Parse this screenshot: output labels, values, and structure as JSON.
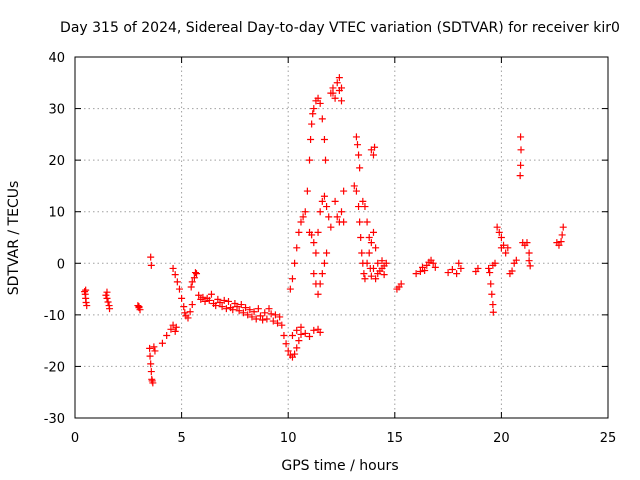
{
  "chart_data": {
    "type": "scatter",
    "title": "Day 315 of 2024, Sidereal Day-to-day VTEC variation (SDTVAR) for receiver kir0",
    "xlabel": "GPS time / hours",
    "ylabel": "SDTVAR / TECUs",
    "xlim": [
      0,
      25
    ],
    "ylim": [
      -30,
      40
    ],
    "xticks": [
      0,
      5,
      10,
      15,
      20,
      25
    ],
    "yticks": [
      -30,
      -20,
      -10,
      0,
      10,
      20,
      30,
      40
    ],
    "xtick_labels": [
      "0",
      "5",
      "10",
      "15",
      "20",
      "25"
    ],
    "ytick_labels": [
      "-30",
      "-20",
      "-10",
      "0",
      "10",
      "20",
      "30",
      "40"
    ],
    "grid": true,
    "marker": "+",
    "color": "#ff0000",
    "series": [
      {
        "name": "kir0",
        "points": [
          [
            0.45,
            -5.5
          ],
          [
            0.48,
            -6.0
          ],
          [
            0.5,
            -6.8
          ],
          [
            0.52,
            -7.6
          ],
          [
            0.55,
            -8.2
          ],
          [
            0.5,
            -5.2
          ],
          [
            1.45,
            -6.2
          ],
          [
            1.5,
            -6.8
          ],
          [
            1.55,
            -7.5
          ],
          [
            1.6,
            -8.2
          ],
          [
            1.62,
            -8.8
          ],
          [
            1.5,
            -5.6
          ],
          [
            2.95,
            -8.2
          ],
          [
            3.0,
            -8.6
          ],
          [
            3.05,
            -9.0
          ],
          [
            3.0,
            -8.4
          ],
          [
            3.5,
            -16.5
          ],
          [
            3.52,
            -18.0
          ],
          [
            3.55,
            -19.5
          ],
          [
            3.58,
            -21.0
          ],
          [
            3.6,
            -22.5
          ],
          [
            3.65,
            -23.2
          ],
          [
            3.62,
            -22.8
          ],
          [
            3.55,
            1.2
          ],
          [
            3.58,
            -0.4
          ],
          [
            3.7,
            -16.2
          ],
          [
            3.75,
            -17.0
          ],
          [
            4.1,
            -15.5
          ],
          [
            4.3,
            -14.0
          ],
          [
            4.5,
            -12.8
          ],
          [
            4.6,
            -12.0
          ],
          [
            4.7,
            -13.2
          ],
          [
            4.75,
            -12.4
          ],
          [
            4.6,
            -1.0
          ],
          [
            4.7,
            -2.2
          ],
          [
            4.8,
            -3.6
          ],
          [
            4.9,
            -5.0
          ],
          [
            5.0,
            -6.8
          ],
          [
            5.1,
            -8.4
          ],
          [
            5.15,
            -9.6
          ],
          [
            5.2,
            -10.2
          ],
          [
            5.3,
            -10.6
          ],
          [
            5.4,
            -9.4
          ],
          [
            5.5,
            -8.0
          ],
          [
            5.45,
            -4.6
          ],
          [
            5.5,
            -3.6
          ],
          [
            5.6,
            -2.8
          ],
          [
            5.7,
            -2.0
          ],
          [
            5.65,
            -1.8
          ],
          [
            5.8,
            -6.2
          ],
          [
            5.9,
            -7.0
          ],
          [
            6.0,
            -6.6
          ],
          [
            6.1,
            -7.4
          ],
          [
            6.2,
            -6.8
          ],
          [
            6.3,
            -7.2
          ],
          [
            6.4,
            -6.0
          ],
          [
            6.5,
            -7.8
          ],
          [
            6.6,
            -8.2
          ],
          [
            6.7,
            -7.0
          ],
          [
            6.8,
            -7.6
          ],
          [
            6.9,
            -8.4
          ],
          [
            7.0,
            -7.2
          ],
          [
            7.1,
            -8.8
          ],
          [
            7.2,
            -7.4
          ],
          [
            7.3,
            -8.6
          ],
          [
            7.4,
            -9.0
          ],
          [
            7.5,
            -7.8
          ],
          [
            7.6,
            -8.4
          ],
          [
            7.7,
            -9.2
          ],
          [
            7.8,
            -8.0
          ],
          [
            7.9,
            -9.6
          ],
          [
            8.0,
            -8.6
          ],
          [
            8.1,
            -10.0
          ],
          [
            8.2,
            -9.0
          ],
          [
            8.3,
            -10.4
          ],
          [
            8.4,
            -9.4
          ],
          [
            8.5,
            -10.8
          ],
          [
            8.6,
            -8.8
          ],
          [
            8.7,
            -10.2
          ],
          [
            8.8,
            -11.0
          ],
          [
            8.9,
            -9.6
          ],
          [
            9.0,
            -10.8
          ],
          [
            9.1,
            -8.8
          ],
          [
            9.2,
            -9.8
          ],
          [
            9.3,
            -11.2
          ],
          [
            9.4,
            -10.0
          ],
          [
            9.5,
            -11.6
          ],
          [
            9.6,
            -10.4
          ],
          [
            9.7,
            -12.0
          ],
          [
            9.8,
            -14.0
          ],
          [
            9.9,
            -15.6
          ],
          [
            10.0,
            -17.0
          ],
          [
            10.1,
            -17.8
          ],
          [
            10.2,
            -18.2
          ],
          [
            10.3,
            -17.6
          ],
          [
            10.4,
            -16.4
          ],
          [
            10.5,
            -15.0
          ],
          [
            10.6,
            -13.8
          ],
          [
            10.2,
            -14.0
          ],
          [
            10.4,
            -13.0
          ],
          [
            10.6,
            -12.4
          ],
          [
            10.8,
            -13.6
          ],
          [
            11.0,
            -14.2
          ],
          [
            11.2,
            -13.0
          ],
          [
            11.4,
            -12.8
          ],
          [
            11.5,
            -13.4
          ],
          [
            10.1,
            -5.0
          ],
          [
            10.2,
            -3.0
          ],
          [
            10.3,
            0.0
          ],
          [
            10.4,
            3.0
          ],
          [
            10.5,
            6.0
          ],
          [
            10.6,
            8.0
          ],
          [
            10.7,
            9.0
          ],
          [
            10.8,
            10.0
          ],
          [
            10.9,
            14.0
          ],
          [
            11.0,
            20.0
          ],
          [
            11.05,
            24.0
          ],
          [
            11.1,
            27.0
          ],
          [
            11.15,
            29.0
          ],
          [
            11.2,
            30.0
          ],
          [
            11.3,
            31.5
          ],
          [
            11.4,
            32.0
          ],
          [
            11.5,
            31.0
          ],
          [
            11.6,
            28.0
          ],
          [
            11.7,
            24.0
          ],
          [
            11.75,
            20.0
          ],
          [
            11.0,
            6.0
          ],
          [
            11.1,
            5.5
          ],
          [
            11.2,
            4.0
          ],
          [
            11.3,
            2.0
          ],
          [
            11.4,
            6.0
          ],
          [
            11.5,
            10.0
          ],
          [
            11.6,
            12.0
          ],
          [
            11.7,
            13.0
          ],
          [
            11.8,
            11.0
          ],
          [
            11.9,
            9.0
          ],
          [
            12.0,
            7.0
          ],
          [
            11.2,
            -2.0
          ],
          [
            11.3,
            -4.0
          ],
          [
            11.4,
            -6.0
          ],
          [
            11.5,
            -4.0
          ],
          [
            11.6,
            -2.0
          ],
          [
            11.7,
            0.0
          ],
          [
            11.8,
            2.0
          ],
          [
            12.0,
            33.0
          ],
          [
            12.1,
            34.0
          ],
          [
            12.2,
            32.0
          ],
          [
            12.3,
            35.0
          ],
          [
            12.4,
            36.0
          ],
          [
            12.5,
            34.0
          ],
          [
            12.5,
            31.5
          ],
          [
            12.1,
            33.0
          ],
          [
            12.4,
            33.5
          ],
          [
            12.2,
            12.0
          ],
          [
            12.3,
            9.0
          ],
          [
            12.4,
            8.0
          ],
          [
            12.5,
            10.0
          ],
          [
            12.6,
            8.0
          ],
          [
            12.6,
            14.0
          ],
          [
            13.1,
            15.0
          ],
          [
            13.2,
            14.0
          ],
          [
            13.3,
            11.0
          ],
          [
            13.35,
            8.0
          ],
          [
            13.4,
            5.0
          ],
          [
            13.45,
            2.0
          ],
          [
            13.5,
            0.0
          ],
          [
            13.55,
            -2.0
          ],
          [
            13.6,
            -3.0
          ],
          [
            13.7,
            0.0
          ],
          [
            13.8,
            2.0
          ],
          [
            13.85,
            -1.0
          ],
          [
            13.9,
            -2.5
          ],
          [
            13.2,
            24.5
          ],
          [
            13.25,
            23.0
          ],
          [
            13.3,
            21.0
          ],
          [
            13.35,
            18.5
          ],
          [
            13.5,
            12.0
          ],
          [
            13.6,
            11.0
          ],
          [
            13.7,
            8.0
          ],
          [
            13.8,
            5.0
          ],
          [
            13.9,
            4.0
          ],
          [
            14.0,
            6.0
          ],
          [
            14.1,
            3.0
          ],
          [
            14.2,
            0.0
          ],
          [
            13.9,
            22.0
          ],
          [
            14.0,
            21.0
          ],
          [
            14.05,
            22.5
          ],
          [
            14.0,
            -1.0
          ],
          [
            14.1,
            -3.0
          ],
          [
            14.2,
            -2.0
          ],
          [
            14.3,
            -1.5
          ],
          [
            14.4,
            -1.0
          ],
          [
            14.5,
            -2.2
          ],
          [
            14.6,
            0.0
          ],
          [
            14.4,
            0.5
          ],
          [
            14.5,
            -0.5
          ],
          [
            15.1,
            -5.0
          ],
          [
            15.2,
            -4.6
          ],
          [
            15.3,
            -4.0
          ],
          [
            16.0,
            -2.0
          ],
          [
            16.2,
            -1.6
          ],
          [
            16.3,
            -0.8
          ],
          [
            16.4,
            -1.4
          ],
          [
            16.5,
            -0.4
          ],
          [
            16.6,
            0.2
          ],
          [
            16.7,
            0.6
          ],
          [
            16.8,
            0.0
          ],
          [
            16.9,
            -0.8
          ],
          [
            17.5,
            -1.8
          ],
          [
            17.7,
            -1.2
          ],
          [
            17.9,
            -2.0
          ],
          [
            18.0,
            0.0
          ],
          [
            18.1,
            -1.0
          ],
          [
            18.8,
            -1.6
          ],
          [
            18.9,
            -1.0
          ],
          [
            19.4,
            -1.0
          ],
          [
            19.45,
            -1.8
          ],
          [
            19.5,
            -4.0
          ],
          [
            19.55,
            -6.0
          ],
          [
            19.6,
            -8.0
          ],
          [
            19.62,
            -9.5
          ],
          [
            19.6,
            -0.4
          ],
          [
            19.7,
            0.0
          ],
          [
            19.8,
            7.0
          ],
          [
            19.9,
            6.0
          ],
          [
            20.0,
            5.0
          ],
          [
            20.0,
            3.0
          ],
          [
            20.1,
            3.5
          ],
          [
            20.2,
            2.0
          ],
          [
            20.3,
            3.0
          ],
          [
            20.4,
            -2.0
          ],
          [
            20.5,
            -1.5
          ],
          [
            20.6,
            0.0
          ],
          [
            20.7,
            0.6
          ],
          [
            20.9,
            24.5
          ],
          [
            20.92,
            22.0
          ],
          [
            20.9,
            19.0
          ],
          [
            20.88,
            17.0
          ],
          [
            21.0,
            4.0
          ],
          [
            21.1,
            3.5
          ],
          [
            21.2,
            4.0
          ],
          [
            21.3,
            2.0
          ],
          [
            21.3,
            0.5
          ],
          [
            21.35,
            -0.5
          ],
          [
            22.6,
            4.0
          ],
          [
            22.7,
            3.5
          ],
          [
            22.8,
            4.2
          ],
          [
            22.85,
            5.5
          ],
          [
            22.9,
            7.0
          ]
        ]
      }
    ]
  }
}
